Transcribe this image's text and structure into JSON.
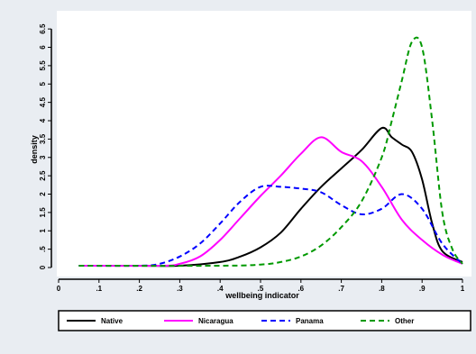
{
  "chart_data": {
    "type": "line",
    "title": "",
    "xlabel": "wellbeing indicator",
    "ylabel": "density",
    "xlim": [
      0,
      1
    ],
    "ylim": [
      0,
      6.7
    ],
    "x_ticks": [
      "0",
      ".1",
      ".2",
      ".3",
      ".4",
      ".5",
      ".6",
      ".7",
      ".8",
      ".9",
      "1"
    ],
    "y_ticks": [
      "0",
      ".5",
      "1",
      "1.5",
      "2",
      "2.5",
      "3",
      "3.5",
      "4",
      "4.5",
      "5",
      "5.5",
      "6",
      "6.5"
    ],
    "grid": false,
    "legend_position": "bottom",
    "series": [
      {
        "name": "Native",
        "color": "#000000",
        "dash": "solid",
        "x": [
          0.05,
          0.2,
          0.3,
          0.4,
          0.45,
          0.5,
          0.55,
          0.6,
          0.65,
          0.7,
          0.75,
          0.8,
          0.825,
          0.85,
          0.875,
          0.9,
          0.925,
          0.95,
          1.0
        ],
        "y": [
          0.05,
          0.05,
          0.05,
          0.15,
          0.3,
          0.55,
          0.95,
          1.6,
          2.2,
          2.7,
          3.2,
          3.8,
          3.55,
          3.35,
          3.15,
          2.4,
          1.2,
          0.45,
          0.15
        ]
      },
      {
        "name": "Nicaragua",
        "color": "#ff00ff",
        "dash": "solid",
        "x": [
          0.05,
          0.25,
          0.3,
          0.35,
          0.4,
          0.45,
          0.5,
          0.55,
          0.6,
          0.65,
          0.7,
          0.75,
          0.8,
          0.85,
          0.9,
          0.95,
          1.0
        ],
        "y": [
          0.05,
          0.05,
          0.1,
          0.3,
          0.75,
          1.35,
          1.95,
          2.5,
          3.1,
          3.55,
          3.15,
          2.9,
          2.2,
          1.3,
          0.75,
          0.35,
          0.1
        ]
      },
      {
        "name": "Panama",
        "color": "#0000ff",
        "dash": "dashed",
        "x": [
          0.05,
          0.2,
          0.25,
          0.3,
          0.35,
          0.4,
          0.45,
          0.5,
          0.55,
          0.6,
          0.65,
          0.7,
          0.75,
          0.8,
          0.85,
          0.9,
          0.95,
          1.0
        ],
        "y": [
          0.05,
          0.05,
          0.1,
          0.3,
          0.65,
          1.2,
          1.8,
          2.2,
          2.2,
          2.15,
          2.05,
          1.7,
          1.45,
          1.6,
          2.0,
          1.6,
          0.65,
          0.1
        ]
      },
      {
        "name": "Other",
        "color": "#009900",
        "dash": "dashed",
        "x": [
          0.05,
          0.4,
          0.5,
          0.55,
          0.6,
          0.65,
          0.7,
          0.75,
          0.8,
          0.825,
          0.85,
          0.875,
          0.9,
          0.925,
          0.95,
          0.975,
          1.0
        ],
        "y": [
          0.05,
          0.05,
          0.08,
          0.15,
          0.3,
          0.6,
          1.1,
          1.8,
          3.0,
          4.0,
          5.1,
          6.15,
          6.0,
          4.0,
          1.5,
          0.5,
          0.1
        ]
      }
    ]
  }
}
